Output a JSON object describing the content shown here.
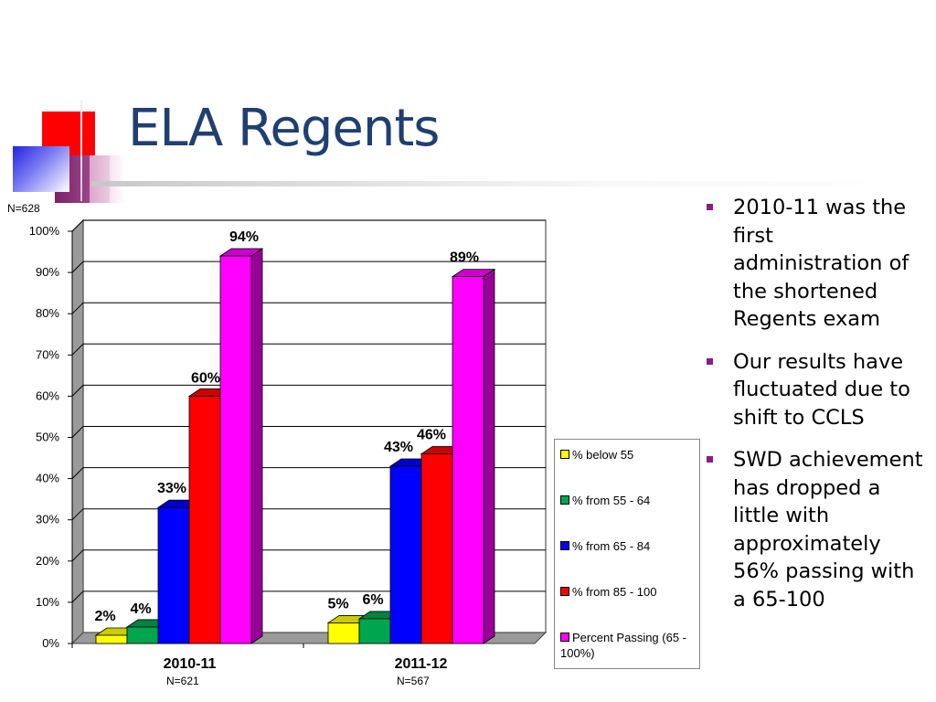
{
  "slide": {
    "title": "ELA Regents",
    "bullets": [
      "2010-11 was the first administration of the shortened Regents exam",
      "Our results have fluctuated due to shift to CCLS",
      "SWD achievement has dropped a little with approximately 56% passing with a 65-100"
    ],
    "colors": {
      "title": "#1F3F73",
      "bullet": "#8B1C8B"
    }
  },
  "notes": {
    "top_n": "N=628",
    "n_2010": "N=621",
    "n_2011": "N=567"
  },
  "chart_data": {
    "type": "bar",
    "categories": [
      "2010-11",
      "2011-12"
    ],
    "series": [
      {
        "name": "% below 55",
        "values": [
          2,
          5
        ],
        "labels": [
          "2%",
          "5%"
        ],
        "color": "#FFFF00"
      },
      {
        "name": "% from 55 - 64",
        "values": [
          4,
          6
        ],
        "labels": [
          "4%",
          "6%"
        ],
        "color": "#00A550"
      },
      {
        "name": "% from 65 - 84",
        "values": [
          33,
          43
        ],
        "labels": [
          "33%",
          "43%"
        ],
        "color": "#0000FF"
      },
      {
        "name": "% from 85 - 100",
        "values": [
          60,
          46
        ],
        "labels": [
          "60%",
          "46%"
        ],
        "color": "#FF0000"
      },
      {
        "name": "Percent Passing (65 - 100%)",
        "values": [
          94,
          89
        ],
        "labels": [
          "94%",
          "89%"
        ],
        "color": "#FF00FF"
      }
    ],
    "yticks": [
      "0%",
      "10%",
      "20%",
      "30%",
      "40%",
      "50%",
      "60%",
      "70%",
      "80%",
      "90%",
      "100%"
    ],
    "ylim": [
      0,
      100
    ],
    "grid": true,
    "legend": "right"
  }
}
